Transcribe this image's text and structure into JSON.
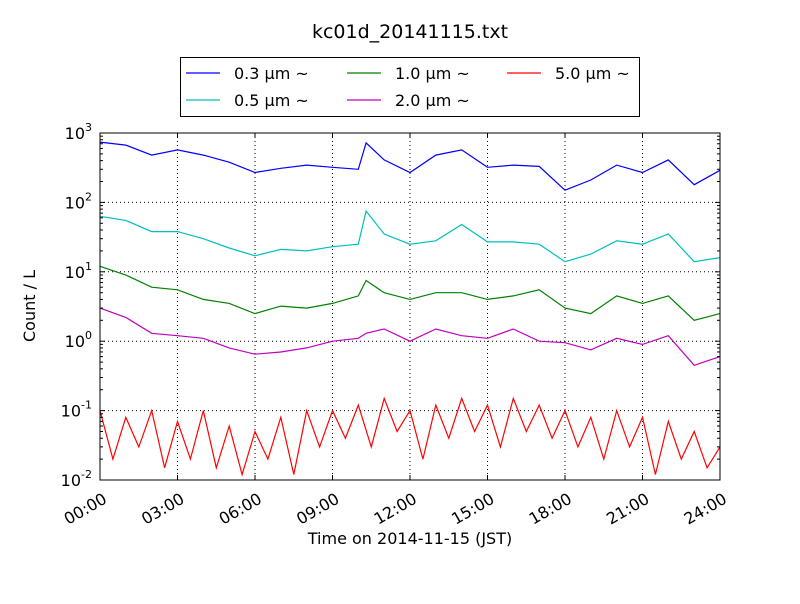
{
  "chart_data": {
    "type": "line",
    "title": "kc01d_20141115.txt",
    "xlabel": "Time on 2014-11-15 (JST)",
    "ylabel": "Count / L",
    "yscale": "log",
    "ylim": [
      0.01,
      1000
    ],
    "xlim_hours": [
      0,
      24
    ],
    "grid": true,
    "legend_placement": "top-center-outside",
    "x_tick_labels": [
      "00:00",
      "03:00",
      "06:00",
      "09:00",
      "12:00",
      "15:00",
      "18:00",
      "21:00",
      "24:00"
    ],
    "y_tick_labels": [
      {
        "base": "10",
        "exp": "-2"
      },
      {
        "base": "10",
        "exp": "-1"
      },
      {
        "base": "10",
        "exp": "0"
      },
      {
        "base": "10",
        "exp": "1"
      },
      {
        "base": "10",
        "exp": "2"
      },
      {
        "base": "10",
        "exp": "3"
      }
    ],
    "x_hours": [
      0,
      1,
      2,
      3,
      4,
      5,
      6,
      7,
      8,
      9,
      10,
      10.3,
      11,
      12,
      13,
      14,
      15,
      16,
      17,
      18,
      19,
      20,
      21,
      22,
      23,
      24
    ],
    "series": [
      {
        "name": "0.3 μm ~",
        "color": "#0000ff",
        "values": [
          740,
          670,
          480,
          570,
          480,
          380,
          270,
          310,
          345,
          320,
          300,
          720,
          410,
          270,
          480,
          570,
          320,
          345,
          330,
          150,
          210,
          345,
          270,
          410,
          180,
          290
        ]
      },
      {
        "name": "0.5 μm ~",
        "color": "#00bfbf",
        "values": [
          63,
          55,
          38,
          38,
          30,
          22,
          17,
          21,
          20,
          23,
          25,
          75,
          35,
          25,
          28,
          48,
          27,
          27,
          25,
          14,
          18,
          28,
          25,
          35,
          14,
          16
        ]
      },
      {
        "name": "1.0 μm ~",
        "color": "#008000",
        "values": [
          12,
          9,
          6,
          5.5,
          4,
          3.5,
          2.5,
          3.2,
          3,
          3.5,
          4.5,
          7.5,
          5,
          4,
          5,
          5,
          4,
          4.5,
          5.5,
          3,
          2.5,
          4.5,
          3.5,
          4.5,
          2,
          2.5
        ]
      },
      {
        "name": "2.0 μm ~",
        "color": "#bf00bf",
        "values": [
          3,
          2.2,
          1.3,
          1.2,
          1.1,
          0.8,
          0.65,
          0.7,
          0.8,
          1.0,
          1.1,
          1.3,
          1.5,
          1.0,
          1.5,
          1.2,
          1.1,
          1.5,
          1.0,
          0.95,
          0.75,
          1.1,
          0.9,
          1.2,
          0.45,
          0.6
        ]
      },
      {
        "name": "5.0 μm ~",
        "color": "#ff0000",
        "noisy": true,
        "x_hours": [
          0,
          0.5,
          1,
          1.5,
          2,
          2.5,
          3,
          3.5,
          4,
          4.5,
          5,
          5.5,
          6,
          6.5,
          7,
          7.5,
          8,
          8.5,
          9,
          9.5,
          10,
          10.5,
          11,
          11.5,
          12,
          12.5,
          13,
          13.5,
          14,
          14.5,
          15,
          15.5,
          16,
          16.5,
          17,
          17.5,
          18,
          18.5,
          19,
          19.5,
          20,
          20.5,
          21,
          21.5,
          22,
          22.5,
          23,
          23.5,
          24
        ],
        "values": [
          0.1,
          0.02,
          0.08,
          0.03,
          0.1,
          0.015,
          0.07,
          0.02,
          0.1,
          0.015,
          0.06,
          0.012,
          0.05,
          0.02,
          0.08,
          0.012,
          0.1,
          0.03,
          0.1,
          0.04,
          0.12,
          0.03,
          0.15,
          0.05,
          0.1,
          0.02,
          0.12,
          0.04,
          0.15,
          0.05,
          0.12,
          0.03,
          0.15,
          0.05,
          0.12,
          0.04,
          0.1,
          0.03,
          0.08,
          0.02,
          0.1,
          0.03,
          0.08,
          0.012,
          0.07,
          0.02,
          0.05,
          0.015,
          0.03
        ]
      }
    ]
  }
}
